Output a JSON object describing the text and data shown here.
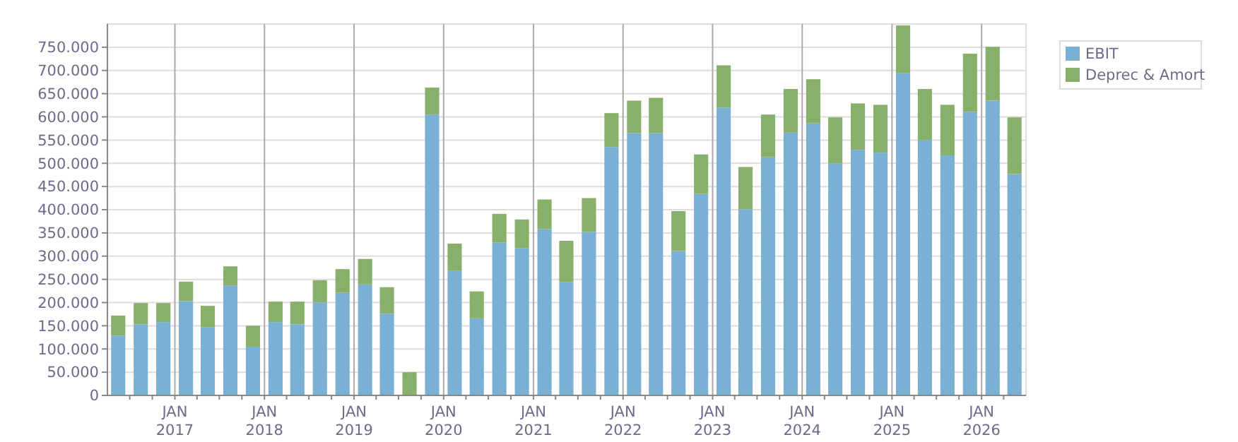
{
  "chart_data": {
    "type": "bar",
    "stacked": true,
    "x": [
      "2016-05-15",
      "2016-08-15",
      "2016-11-15",
      "2017-02-15",
      "2017-05-15",
      "2017-08-15",
      "2017-11-15",
      "2018-02-15",
      "2018-05-15",
      "2018-08-15",
      "2018-11-15",
      "2019-02-15",
      "2019-05-15",
      "2019-08-15",
      "2019-11-15",
      "2020-02-15",
      "2020-05-15",
      "2020-08-15",
      "2020-11-15",
      "2021-02-15",
      "2021-05-15",
      "2021-08-15",
      "2021-11-15",
      "2022-02-15",
      "2022-05-15",
      "2022-08-15",
      "2022-11-15",
      "2023-02-15",
      "2023-05-15",
      "2023-08-15",
      "2023-11-15",
      "2024-02-15",
      "2024-05-15",
      "2024-08-15",
      "2024-11-15",
      "2025-02-15",
      "2025-05-15",
      "2025-08-15",
      "2025-11-15",
      "2026-02-15",
      "2026-05-15"
    ],
    "series": [
      {
        "name": "EBIT",
        "color": "#7ab0d4",
        "values": [
          129000,
          153000,
          158000,
          203000,
          147000,
          237000,
          105000,
          158000,
          153000,
          200000,
          221000,
          239000,
          176000,
          0,
          605000,
          268000,
          166000,
          329000,
          317000,
          358000,
          244000,
          352000,
          535000,
          565000,
          565000,
          311000,
          434000,
          620000,
          401000,
          513000,
          566000,
          586000,
          500000,
          529000,
          523000,
          694000,
          550000,
          517000,
          611000,
          635000,
          477000
        ]
      },
      {
        "name": "Deprec & Amort",
        "color": "#88b06a",
        "values": [
          43000,
          46000,
          41000,
          42000,
          46000,
          41000,
          45000,
          44000,
          49000,
          48000,
          51000,
          55000,
          57000,
          50000,
          58000,
          59000,
          58000,
          62000,
          62000,
          64000,
          89000,
          73000,
          73000,
          70000,
          76000,
          86000,
          85000,
          91000,
          91000,
          92000,
          94000,
          95000,
          99000,
          100000,
          103000,
          103000,
          110000,
          109000,
          125000,
          116000,
          122000
        ]
      }
    ],
    "xlim": [
      "2016-04-01",
      "2026-07-01"
    ],
    "xticks": [
      {
        "value": "2016-07-01",
        "label": null
      },
      {
        "value": "2016-10-01",
        "label": null
      },
      {
        "value": "2017-01-01",
        "label": "JAN\n2017"
      },
      {
        "value": "2017-04-01",
        "label": null
      },
      {
        "value": "2017-07-01",
        "label": null
      },
      {
        "value": "2017-10-01",
        "label": null
      },
      {
        "value": "2018-01-01",
        "label": "JAN\n2018"
      },
      {
        "value": "2018-04-01",
        "label": null
      },
      {
        "value": "2018-07-01",
        "label": null
      },
      {
        "value": "2018-10-01",
        "label": null
      },
      {
        "value": "2019-01-01",
        "label": "JAN\n2019"
      },
      {
        "value": "2019-04-01",
        "label": null
      },
      {
        "value": "2019-07-01",
        "label": null
      },
      {
        "value": "2019-10-01",
        "label": null
      },
      {
        "value": "2020-01-01",
        "label": "JAN\n2020"
      },
      {
        "value": "2020-04-01",
        "label": null
      },
      {
        "value": "2020-07-01",
        "label": null
      },
      {
        "value": "2020-10-01",
        "label": null
      },
      {
        "value": "2021-01-01",
        "label": "JAN\n2021"
      },
      {
        "value": "2021-04-01",
        "label": null
      },
      {
        "value": "2021-07-01",
        "label": null
      },
      {
        "value": "2021-10-01",
        "label": null
      },
      {
        "value": "2022-01-01",
        "label": "JAN\n2022"
      },
      {
        "value": "2022-04-01",
        "label": null
      },
      {
        "value": "2022-07-01",
        "label": null
      },
      {
        "value": "2022-10-01",
        "label": null
      },
      {
        "value": "2023-01-01",
        "label": "JAN\n2023"
      },
      {
        "value": "2023-04-01",
        "label": null
      },
      {
        "value": "2023-07-01",
        "label": null
      },
      {
        "value": "2023-10-01",
        "label": null
      },
      {
        "value": "2024-01-01",
        "label": "JAN\n2024"
      },
      {
        "value": "2024-04-01",
        "label": null
      },
      {
        "value": "2024-07-01",
        "label": null
      },
      {
        "value": "2024-10-01",
        "label": null
      },
      {
        "value": "2025-01-01",
        "label": "JAN\n2025"
      },
      {
        "value": "2025-04-01",
        "label": null
      },
      {
        "value": "2025-07-01",
        "label": null
      },
      {
        "value": "2025-10-01",
        "label": null
      },
      {
        "value": "2026-01-01",
        "label": "JAN\n2026"
      },
      {
        "value": "2026-04-01",
        "label": null
      }
    ],
    "ylim": [
      0,
      800000
    ],
    "yticks": [
      {
        "value": 0,
        "label": "0"
      },
      {
        "value": 50000,
        "label": "50.000"
      },
      {
        "value": 100000,
        "label": "100.000"
      },
      {
        "value": 150000,
        "label": "150.000"
      },
      {
        "value": 200000,
        "label": "200.000"
      },
      {
        "value": 250000,
        "label": "250.000"
      },
      {
        "value": 300000,
        "label": "300.000"
      },
      {
        "value": 350000,
        "label": "350.000"
      },
      {
        "value": 400000,
        "label": "400.000"
      },
      {
        "value": 450000,
        "label": "450.000"
      },
      {
        "value": 500000,
        "label": "500.000"
      },
      {
        "value": 550000,
        "label": "550.000"
      },
      {
        "value": 600000,
        "label": "600.000"
      },
      {
        "value": 650000,
        "label": "650.000"
      },
      {
        "value": 700000,
        "label": "700.000"
      },
      {
        "value": 750000,
        "label": "750.000"
      }
    ],
    "grid": true,
    "legend": "top right"
  }
}
